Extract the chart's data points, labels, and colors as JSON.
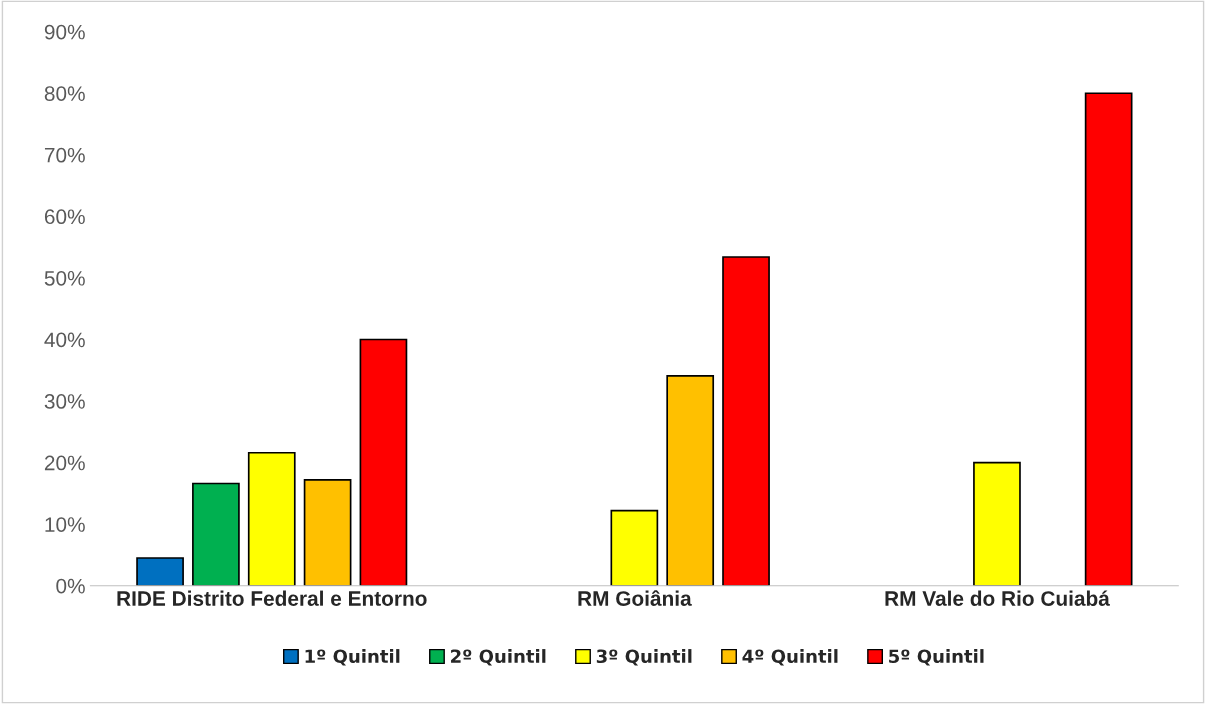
{
  "chart_data": {
    "type": "bar",
    "categories": [
      "RIDE Distrito Federal e Entorno",
      "RM Goiânia",
      "RM Vale do Rio Cuiabá"
    ],
    "series": [
      {
        "name": "1º Quintil",
        "color": "#0070c0",
        "values": [
          4.5,
          null,
          null
        ]
      },
      {
        "name": "2º Quintil",
        "color": "#00b050",
        "values": [
          16.6,
          null,
          null
        ]
      },
      {
        "name": "3º Quintil",
        "color": "#ffff00",
        "values": [
          21.6,
          12.2,
          20.0
        ]
      },
      {
        "name": "4º Quintil",
        "color": "#ffc000",
        "values": [
          17.2,
          34.1,
          null
        ]
      },
      {
        "name": "5º Quintil",
        "color": "#ff0000",
        "values": [
          40.0,
          53.4,
          80.0
        ]
      }
    ],
    "ylim": [
      0,
      90
    ],
    "yticks": [
      {
        "value": 0,
        "label": "0%"
      },
      {
        "value": 10,
        "label": "10%"
      },
      {
        "value": 20,
        "label": "20%"
      },
      {
        "value": 30,
        "label": "30%"
      },
      {
        "value": 40,
        "label": "40%"
      },
      {
        "value": 50,
        "label": "50%"
      },
      {
        "value": 60,
        "label": "60%"
      },
      {
        "value": 70,
        "label": "70%"
      },
      {
        "value": 80,
        "label": "80%"
      },
      {
        "value": 90,
        "label": "90%"
      }
    ],
    "grid": false,
    "legend": "bottom"
  }
}
